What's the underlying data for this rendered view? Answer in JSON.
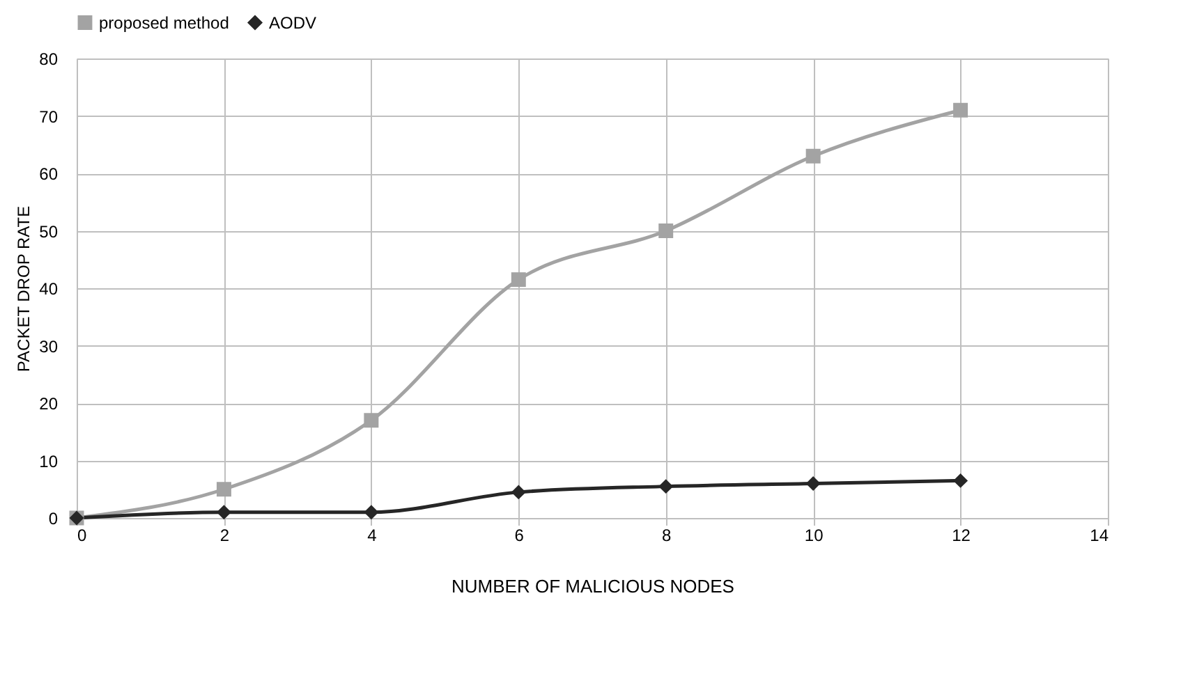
{
  "chart_data": {
    "type": "line",
    "xlabel": "NUMBER OF MALICIOUS NODES",
    "ylabel": "PACKET DROP RATE",
    "x": [
      0,
      2,
      4,
      6,
      8,
      10,
      12
    ],
    "series": [
      {
        "name": "proposed method",
        "color": "#a3a3a3",
        "marker": "square",
        "values": [
          0,
          5,
          17,
          41.5,
          50,
          63,
          71
        ]
      },
      {
        "name": "AODV",
        "color": "#262626",
        "marker": "diamond",
        "values": [
          0,
          1,
          1,
          4.5,
          5.5,
          6,
          6.5
        ]
      }
    ],
    "xlim": [
      0,
      14
    ],
    "xticks": [
      0,
      2,
      4,
      6,
      8,
      10,
      12,
      14
    ],
    "ylim": [
      0,
      80
    ],
    "yticks": [
      0,
      10,
      20,
      30,
      40,
      50,
      60,
      70,
      80
    ],
    "grid": true,
    "legend": "top",
    "line_style": "solid"
  }
}
